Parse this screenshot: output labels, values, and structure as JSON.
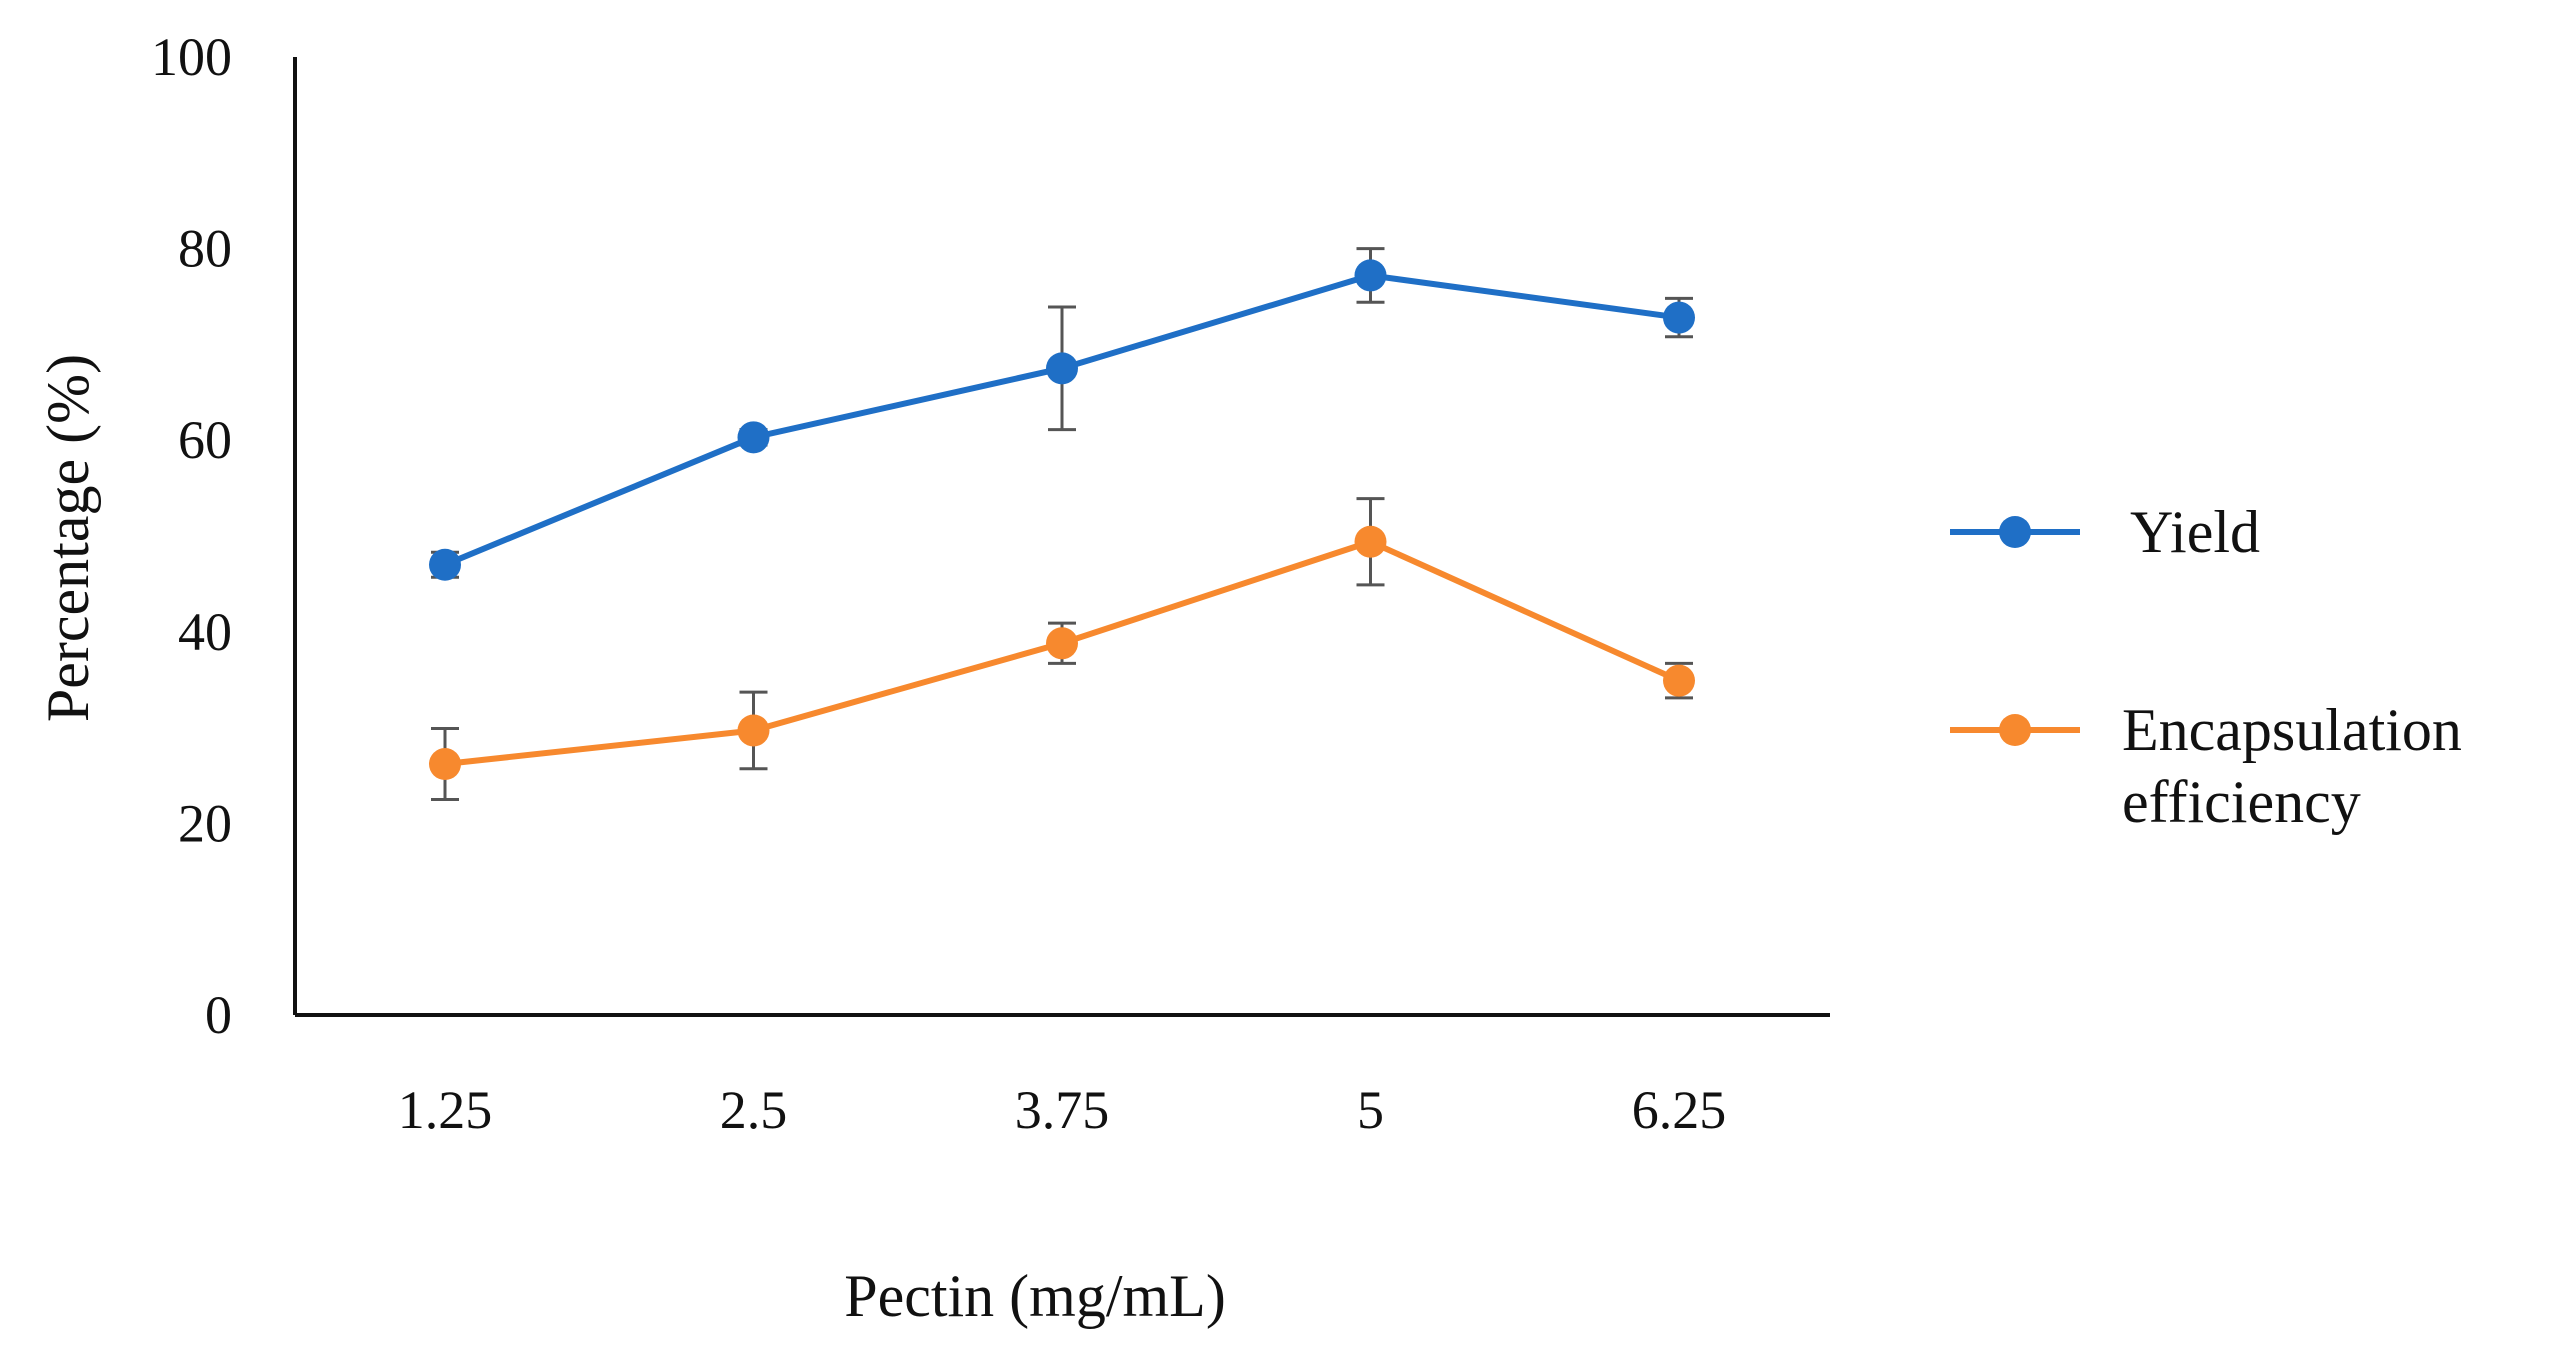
{
  "chart_data": {
    "type": "line",
    "title": "",
    "xlabel": "Pectin (mg/mL)",
    "ylabel": "Percentage  (%)",
    "categories": [
      "1.25",
      "2.5",
      "3.75",
      "5",
      "6.25"
    ],
    "ylim": [
      0,
      100
    ],
    "yticks": [
      0,
      20,
      40,
      60,
      80,
      100
    ],
    "grid": false,
    "legend_position": "right",
    "series": [
      {
        "name": "Yield",
        "color": "#1f6fc6",
        "values": [
          47,
          60.3,
          67.5,
          77.2,
          72.8
        ],
        "errors": [
          1.3,
          0.8,
          6.4,
          2.8,
          2.0
        ]
      },
      {
        "name": "Encapsulation efficiency",
        "color": "#f7892e",
        "values": [
          26.2,
          29.7,
          38.8,
          49.4,
          34.9
        ],
        "errors": [
          3.7,
          4.0,
          2.1,
          4.5,
          1.8
        ]
      }
    ]
  }
}
